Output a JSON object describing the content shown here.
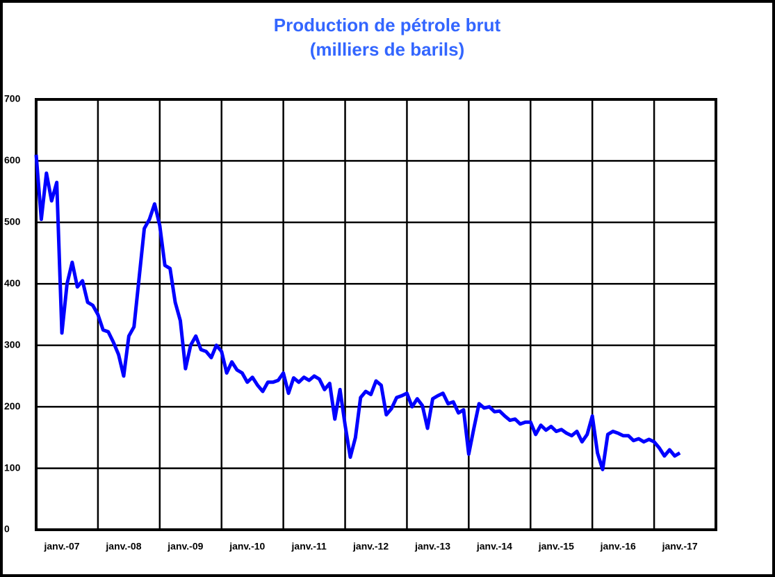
{
  "chart_data": {
    "type": "line",
    "title": "Production de pétrole brut",
    "subtitle": "(milliers de barils)",
    "categories": [
      null,
      null,
      null,
      null,
      null,
      "janv.-07",
      null,
      null,
      null,
      null,
      null,
      null,
      null,
      null,
      null,
      null,
      null,
      "janv.-08",
      null,
      null,
      null,
      null,
      null,
      null,
      null,
      null,
      null,
      null,
      null,
      "janv.-09",
      null,
      null,
      null,
      null,
      null,
      null,
      null,
      null,
      null,
      null,
      null,
      "janv.-10",
      null,
      null,
      null,
      null,
      null,
      null,
      null,
      null,
      null,
      null,
      null,
      "janv.-11",
      null,
      null,
      null,
      null,
      null,
      null,
      null,
      null,
      null,
      null,
      null,
      "janv.-12",
      null,
      null,
      null,
      null,
      null,
      null,
      null,
      null,
      null,
      null,
      null,
      "janv.-13",
      null,
      null,
      null,
      null,
      null,
      null,
      null,
      null,
      null,
      null,
      null,
      "janv.-14",
      null,
      null,
      null,
      null,
      null,
      null,
      null,
      null,
      null,
      null,
      null,
      "janv.-15",
      null,
      null,
      null,
      null,
      null,
      null,
      null,
      null,
      null,
      null,
      null,
      "janv.-16",
      null,
      null,
      null,
      null,
      null,
      null,
      null,
      null,
      null,
      null,
      null,
      "janv.-17",
      null,
      null,
      null,
      null,
      null,
      null
    ],
    "series": [
      {
        "color": "#0000ff",
        "values": [
          610,
          505,
          580,
          535,
          565,
          320,
          400,
          435,
          395,
          405,
          370,
          365,
          350,
          325,
          322,
          305,
          285,
          250,
          315,
          330,
          410,
          490,
          505,
          530,
          495,
          430,
          425,
          370,
          340,
          262,
          300,
          315,
          293,
          290,
          280,
          300,
          290,
          255,
          273,
          260,
          255,
          240,
          248,
          235,
          225,
          240,
          240,
          243,
          255,
          222,
          247,
          240,
          248,
          243,
          250,
          245,
          228,
          238,
          180,
          228,
          170,
          118,
          150,
          215,
          225,
          220,
          242,
          235,
          187,
          197,
          215,
          218,
          222,
          200,
          213,
          202,
          165,
          213,
          218,
          222,
          205,
          208,
          190,
          195,
          123,
          165,
          205,
          198,
          200,
          192,
          193,
          185,
          178,
          180,
          172,
          175,
          175,
          155,
          170,
          162,
          168,
          160,
          163,
          157,
          153,
          160,
          143,
          155,
          185,
          125,
          98,
          155,
          160,
          157,
          153,
          153,
          145,
          148,
          143,
          147,
          143,
          133,
          120,
          130,
          120,
          125,
          null,
          null,
          null,
          null,
          null,
          null
        ]
      }
    ],
    "ylim": [
      0,
      700
    ],
    "yticks": [
      0,
      100,
      200,
      300,
      400,
      500,
      600,
      700
    ],
    "grid": true
  }
}
